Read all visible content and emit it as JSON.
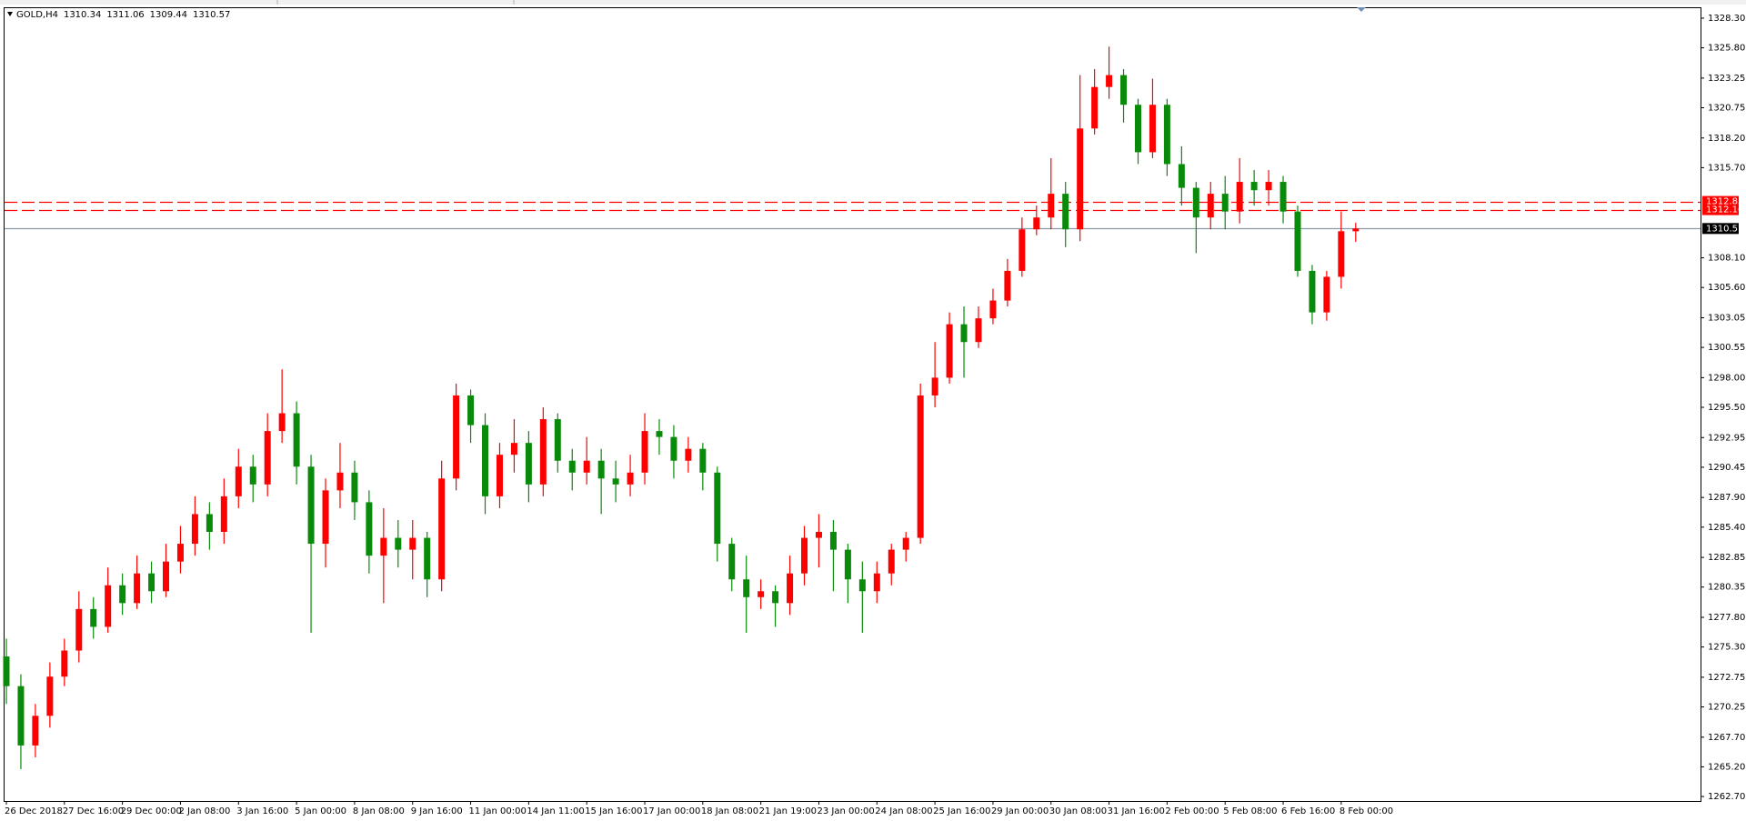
{
  "chart_data": {
    "type": "candlestick",
    "title": "GOLD,H4",
    "categories": [
      "26 Dec 2018",
      null,
      null,
      null,
      "27 Dec 16:00",
      null,
      null,
      null,
      "29 Dec 00:00",
      null,
      null,
      null,
      "2 Jan 08:00",
      null,
      null,
      null,
      "3 Jan 16:00",
      null,
      null,
      null,
      "5 Jan 00:00",
      null,
      null,
      null,
      "8 Jan 08:00",
      null,
      null,
      null,
      "9 Jan 16:00",
      null,
      null,
      null,
      "11 Jan 00:00",
      null,
      null,
      null,
      "14 Jan 11:00",
      null,
      null,
      null,
      "15 Jan 16:00",
      null,
      null,
      null,
      "17 Jan 00:00",
      null,
      null,
      null,
      "18 Jan 08:00",
      null,
      null,
      null,
      "21 Jan 19:00",
      null,
      null,
      null,
      "23 Jan 00:00",
      null,
      null,
      null,
      "24 Jan 08:00",
      null,
      null,
      null,
      "25 Jan 16:00",
      null,
      null,
      null,
      "29 Jan 00:00",
      null,
      null,
      null,
      "30 Jan 08:00",
      null,
      null,
      null,
      "31 Jan 16:00",
      null,
      null,
      null,
      "2 Feb 00:00",
      null,
      null,
      null,
      "5 Feb 08:00",
      null,
      null,
      null,
      "6 Feb 16:00",
      null,
      null,
      null,
      "8 Feb 00:00",
      null
    ],
    "open": [
      1274.5,
      1272.0,
      1267.0,
      1269.5,
      1272.8,
      1275.0,
      1278.5,
      1277.0,
      1280.5,
      1279.0,
      1281.5,
      1280.0,
      1282.5,
      1284.0,
      1286.5,
      1285.0,
      1288.0,
      1290.5,
      1289.0,
      1293.5,
      1295.0,
      1290.5,
      1284.0,
      1288.5,
      1290.0,
      1287.5,
      1283.0,
      1284.5,
      1283.5,
      1284.5,
      1281.0,
      1289.5,
      1296.5,
      1294.0,
      1288.0,
      1291.5,
      1292.5,
      1289.0,
      1294.5,
      1291.0,
      1290.0,
      1291.0,
      1289.5,
      1289.0,
      1290.0,
      1293.5,
      1293.0,
      1291.0,
      1292.0,
      1290.0,
      1284.0,
      1281.0,
      1279.5,
      1280.0,
      1279.0,
      1281.5,
      1284.5,
      1285.0,
      1283.5,
      1281.0,
      1280.0,
      1281.5,
      1283.5,
      1284.5,
      1296.5,
      1298.0,
      1302.5,
      1301.0,
      1303.0,
      1304.5,
      1307.0,
      1310.5,
      1311.5,
      1313.5,
      1310.5,
      1319.0,
      1322.5,
      1323.5,
      1321.0,
      1317.0,
      1321.0,
      1316.0,
      1314.0,
      1311.5,
      1313.5,
      1312.0,
      1314.5,
      1313.8,
      1314.5,
      1312.0,
      1307.0,
      1303.5,
      1306.5,
      1310.34
    ],
    "high": [
      1276.0,
      1273.0,
      1270.5,
      1274.0,
      1276.0,
      1280.0,
      1279.5,
      1282.0,
      1281.5,
      1283.0,
      1282.5,
      1284.0,
      1285.5,
      1288.0,
      1287.5,
      1289.5,
      1292.0,
      1291.5,
      1295.0,
      1298.7,
      1296.0,
      1291.5,
      1289.5,
      1292.5,
      1291.0,
      1288.5,
      1287.0,
      1286.0,
      1286.0,
      1285.0,
      1291.0,
      1297.5,
      1297.0,
      1295.0,
      1292.5,
      1294.5,
      1293.5,
      1295.5,
      1295.0,
      1292.0,
      1293.0,
      1292.0,
      1291.0,
      1291.5,
      1295.0,
      1294.5,
      1294.0,
      1293.0,
      1292.5,
      1290.5,
      1284.5,
      1283.0,
      1281.0,
      1280.5,
      1283.0,
      1285.5,
      1286.5,
      1286.0,
      1284.0,
      1282.5,
      1282.5,
      1284.0,
      1285.0,
      1297.5,
      1301.0,
      1303.5,
      1304.0,
      1304.0,
      1305.5,
      1308.0,
      1311.5,
      1312.5,
      1316.5,
      1314.5,
      1323.5,
      1324.0,
      1325.9,
      1324.0,
      1321.5,
      1323.2,
      1321.5,
      1317.5,
      1314.5,
      1314.5,
      1315.0,
      1316.5,
      1315.5,
      1315.5,
      1315.0,
      1312.5,
      1307.5,
      1307.0,
      1312.0,
      1311.06
    ],
    "low": [
      1270.5,
      1265.0,
      1266.0,
      1268.5,
      1272.0,
      1274.0,
      1276.0,
      1276.5,
      1278.0,
      1278.5,
      1279.0,
      1279.5,
      1281.5,
      1283.0,
      1283.5,
      1284.0,
      1287.0,
      1287.5,
      1288.0,
      1292.5,
      1289.0,
      1276.5,
      1282.0,
      1287.0,
      1286.0,
      1281.5,
      1279.0,
      1282.0,
      1281.0,
      1279.5,
      1280.0,
      1288.5,
      1292.5,
      1286.5,
      1287.0,
      1290.0,
      1287.5,
      1288.0,
      1290.0,
      1288.5,
      1289.0,
      1286.5,
      1287.5,
      1288.0,
      1289.0,
      1291.5,
      1289.5,
      1290.0,
      1288.5,
      1282.5,
      1280.0,
      1276.5,
      1278.5,
      1277.0,
      1278.0,
      1280.5,
      1282.0,
      1280.0,
      1279.0,
      1276.5,
      1279.0,
      1280.5,
      1282.5,
      1284.0,
      1295.5,
      1297.5,
      1298.0,
      1300.5,
      1302.5,
      1304.0,
      1306.5,
      1310.0,
      1310.5,
      1309.0,
      1309.5,
      1318.5,
      1321.5,
      1319.5,
      1316.0,
      1316.5,
      1315.0,
      1312.5,
      1308.5,
      1310.5,
      1310.5,
      1311.0,
      1312.5,
      1312.5,
      1311.0,
      1306.5,
      1302.5,
      1302.8,
      1305.5,
      1309.44
    ],
    "close": [
      1272.0,
      1267.0,
      1269.5,
      1272.8,
      1275.0,
      1278.5,
      1277.0,
      1280.5,
      1279.0,
      1281.5,
      1280.0,
      1282.5,
      1284.0,
      1286.5,
      1285.0,
      1288.0,
      1290.5,
      1289.0,
      1293.5,
      1295.0,
      1290.5,
      1284.0,
      1288.5,
      1290.0,
      1287.5,
      1283.0,
      1284.5,
      1283.5,
      1284.5,
      1281.0,
      1289.5,
      1296.5,
      1294.0,
      1288.0,
      1291.5,
      1292.5,
      1289.0,
      1294.5,
      1291.0,
      1290.0,
      1291.0,
      1289.5,
      1289.0,
      1290.0,
      1293.5,
      1293.0,
      1291.0,
      1292.0,
      1290.0,
      1284.0,
      1281.0,
      1279.5,
      1280.0,
      1279.0,
      1281.5,
      1284.5,
      1285.0,
      1283.5,
      1281.0,
      1280.0,
      1281.5,
      1283.5,
      1284.5,
      1296.5,
      1298.0,
      1302.5,
      1301.0,
      1303.0,
      1304.5,
      1307.0,
      1310.5,
      1311.5,
      1313.5,
      1310.5,
      1319.0,
      1322.5,
      1323.5,
      1321.0,
      1317.0,
      1321.0,
      1316.0,
      1314.0,
      1311.5,
      1313.5,
      1312.0,
      1314.5,
      1313.8,
      1314.5,
      1312.0,
      1307.0,
      1303.5,
      1306.5,
      1310.34,
      1310.57
    ],
    "up_color": "#ff0000",
    "down_color": "#0a8a0a",
    "ylim": [
      1262.32,
      1329.14
    ],
    "yticks": [
      {
        "value": 1328.3,
        "label": "1328.30"
      },
      {
        "value": 1325.8,
        "label": "1325.80"
      },
      1323.25,
      1320.75,
      {
        "value": 1318.2,
        "label": "1318.20"
      },
      {
        "value": 1315.7,
        "label": "1315.70"
      },
      {
        "value": 1308.1,
        "label": "1308.10"
      },
      {
        "value": 1305.6,
        "label": "1305.60"
      },
      1303.05,
      1300.55,
      {
        "value": 1298,
        "label": "1298.00"
      },
      {
        "value": 1295.5,
        "label": "1295.50"
      },
      1292.95,
      1290.45,
      {
        "value": 1287.9,
        "label": "1287.90"
      },
      {
        "value": 1285.4,
        "label": "1285.40"
      },
      1282.85,
      1280.35,
      {
        "value": 1277.8,
        "label": "1277.80"
      },
      {
        "value": 1275.3,
        "label": "1275.30"
      },
      1272.75,
      1270.25,
      {
        "value": 1267.7,
        "label": "1267.70"
      },
      {
        "value": 1265.2,
        "label": "1265.20"
      },
      {
        "value": 1262.7,
        "label": "1262.70"
      }
    ],
    "grid": false,
    "levels": [
      {
        "value": 1312.85,
        "color": "#ff0000",
        "style": "dashed"
      },
      {
        "value": 1312.16,
        "color": "#ff0000",
        "style": "dashed"
      },
      {
        "value": 1310.57,
        "color": "#8a9aa8",
        "style": "solid"
      }
    ]
  }
}
